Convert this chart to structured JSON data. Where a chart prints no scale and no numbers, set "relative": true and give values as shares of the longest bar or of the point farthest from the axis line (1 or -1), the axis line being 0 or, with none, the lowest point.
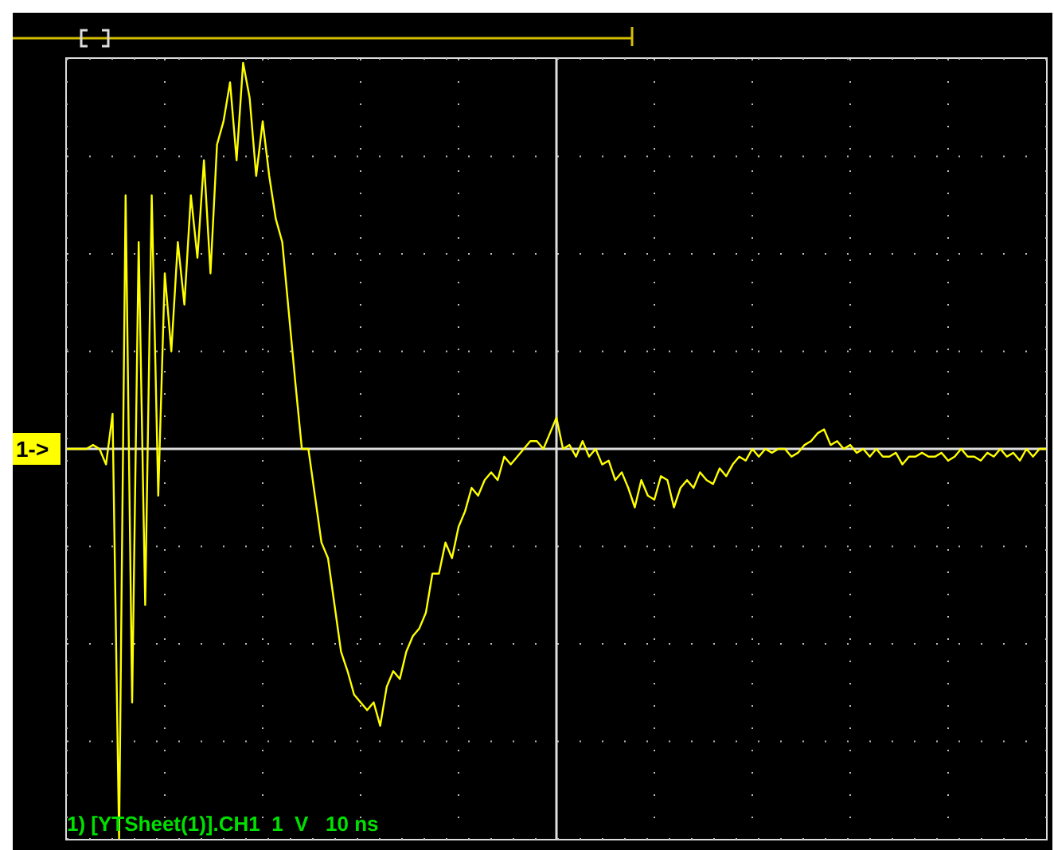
{
  "chart_data": {
    "type": "line",
    "relative": true,
    "grid": true,
    "line_style": "solid",
    "annotations": [
      "1->",
      "1) [YTSheet(1)].CH1  1  V   10 ns"
    ],
    "categories": [
      null,
      null,
      null,
      null,
      null,
      null,
      null,
      null,
      null,
      null,
      null,
      null,
      null,
      null,
      null,
      null,
      null,
      null,
      null,
      null,
      null,
      null,
      null,
      null,
      null,
      null,
      null,
      null,
      null,
      null,
      null,
      null,
      null,
      null,
      null,
      null,
      null,
      null,
      null,
      null,
      null,
      null,
      null,
      null,
      null,
      null,
      null,
      null,
      null,
      null,
      null,
      null,
      null,
      null,
      null,
      null,
      null,
      null,
      null,
      null,
      null,
      null,
      null,
      null,
      null,
      null,
      null,
      null,
      null,
      null,
      null,
      null,
      null,
      null,
      null,
      null,
      null,
      null,
      null,
      null,
      null,
      null,
      null,
      null,
      null,
      null,
      null,
      null,
      null,
      null,
      null,
      null,
      null,
      null,
      null,
      null,
      null,
      null,
      null,
      null,
      null,
      null,
      null,
      null,
      null,
      null,
      null,
      null,
      null,
      null,
      null,
      null,
      null,
      null,
      null,
      null,
      null,
      null,
      null,
      null,
      null,
      null,
      null,
      null,
      null,
      null,
      null,
      null,
      null,
      null,
      null,
      null,
      null,
      null,
      null,
      null,
      null,
      null,
      null,
      null,
      null,
      null,
      null,
      null,
      null,
      null,
      null,
      null,
      null,
      null,
      null
    ],
    "series": [
      {
        "color": "#ffff00",
        "values": [
          0,
          0,
          0,
          0,
          0.01,
          0,
          -0.04,
          0.09,
          -1,
          0.65,
          -0.65,
          0.53,
          -0.4,
          0.65,
          -0.12,
          0.45,
          0.25,
          0.53,
          0.37,
          0.65,
          0.49,
          0.74,
          0.45,
          0.78,
          0.84,
          0.94,
          0.74,
          0.99,
          0.9,
          0.7,
          0.84,
          0.7,
          0.59,
          0.53,
          0.35,
          0.17,
          0,
          0,
          -0.12,
          -0.24,
          -0.28,
          -0.4,
          -0.52,
          -0.57,
          -0.63,
          -0.65,
          -0.67,
          -0.65,
          -0.71,
          -0.61,
          -0.57,
          -0.59,
          -0.52,
          -0.48,
          -0.46,
          -0.42,
          -0.32,
          -0.32,
          -0.24,
          -0.28,
          -0.2,
          -0.16,
          -0.1,
          -0.12,
          -0.08,
          -0.06,
          -0.08,
          -0.02,
          -0.04,
          -0.02,
          0,
          0.02,
          0.02,
          0,
          0.04,
          0.08,
          0,
          0.01,
          -0.02,
          0.02,
          -0.02,
          0,
          -0.04,
          -0.03,
          -0.08,
          -0.06,
          -0.1,
          -0.15,
          -0.08,
          -0.12,
          -0.13,
          -0.07,
          -0.08,
          -0.15,
          -0.1,
          -0.08,
          -0.1,
          -0.06,
          -0.08,
          -0.09,
          -0.05,
          -0.07,
          -0.04,
          -0.02,
          -0.03,
          0,
          -0.02,
          0,
          -0.01,
          0,
          0,
          -0.02,
          -0.01,
          0.01,
          0.02,
          0.04,
          0.05,
          0.01,
          0.02,
          0,
          0.01,
          -0.01,
          0,
          -0.02,
          0,
          -0.02,
          -0.02,
          -0.01,
          -0.04,
          -0.02,
          -0.02,
          -0.01,
          -0.02,
          -0.02,
          -0.01,
          -0.03,
          -0.02,
          0,
          -0.02,
          -0.02,
          -0.03,
          -0.01,
          -0.02,
          0,
          -0.02,
          -0.01,
          -0.03,
          0,
          -0.02,
          0,
          0
        ]
      }
    ]
  }
}
